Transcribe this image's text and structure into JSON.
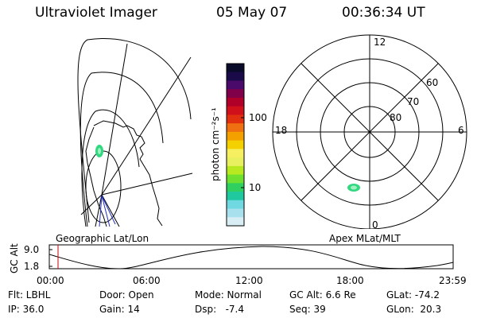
{
  "header": {
    "instrument": "Ultraviolet Imager",
    "date": "05 May 07",
    "time": "00:36:34 UT"
  },
  "colorbar": {
    "unit_label": "photon cm⁻²s⁻¹",
    "ticks": [
      "100",
      "10"
    ],
    "colors": [
      "#0a0a2a",
      "#1a0a4a",
      "#4a0a6a",
      "#80004a",
      "#b0002a",
      "#d0101a",
      "#e03010",
      "#ee7010",
      "#f4a000",
      "#f4d000",
      "#f6f060",
      "#e8f060",
      "#b8e820",
      "#70e030",
      "#30d060",
      "#20c8a0",
      "#70d8e0",
      "#a8e0ee",
      "#d8eef4"
    ]
  },
  "left_map": {
    "label": "Geographic Lat/Lon"
  },
  "right_polar": {
    "label": "Apex MLat/MLT",
    "mlt_labels": {
      "top": "12",
      "left": "18",
      "right": "6",
      "bottom": "0"
    },
    "lat_labels": [
      "60",
      "70",
      "80"
    ]
  },
  "timeline": {
    "ylabel": "GC Alt",
    "yticks": [
      "9.0",
      "1.8"
    ],
    "xticks": [
      "00:00",
      "06:00",
      "12:00",
      "18:00",
      "23:59"
    ]
  },
  "info": {
    "flt": "Flt: LBHL",
    "door": "Door: Open",
    "mode": "Mode: Normal",
    "gc_alt": "GC Alt: 6.6 Re",
    "glat": "GLat: -74.2",
    "ip": "IP: 36.0",
    "gain": "Gain: 14",
    "dsp": "Dsp:   -7.4",
    "seq": "Seq: 39",
    "glon": "GLon:  20.3"
  }
}
